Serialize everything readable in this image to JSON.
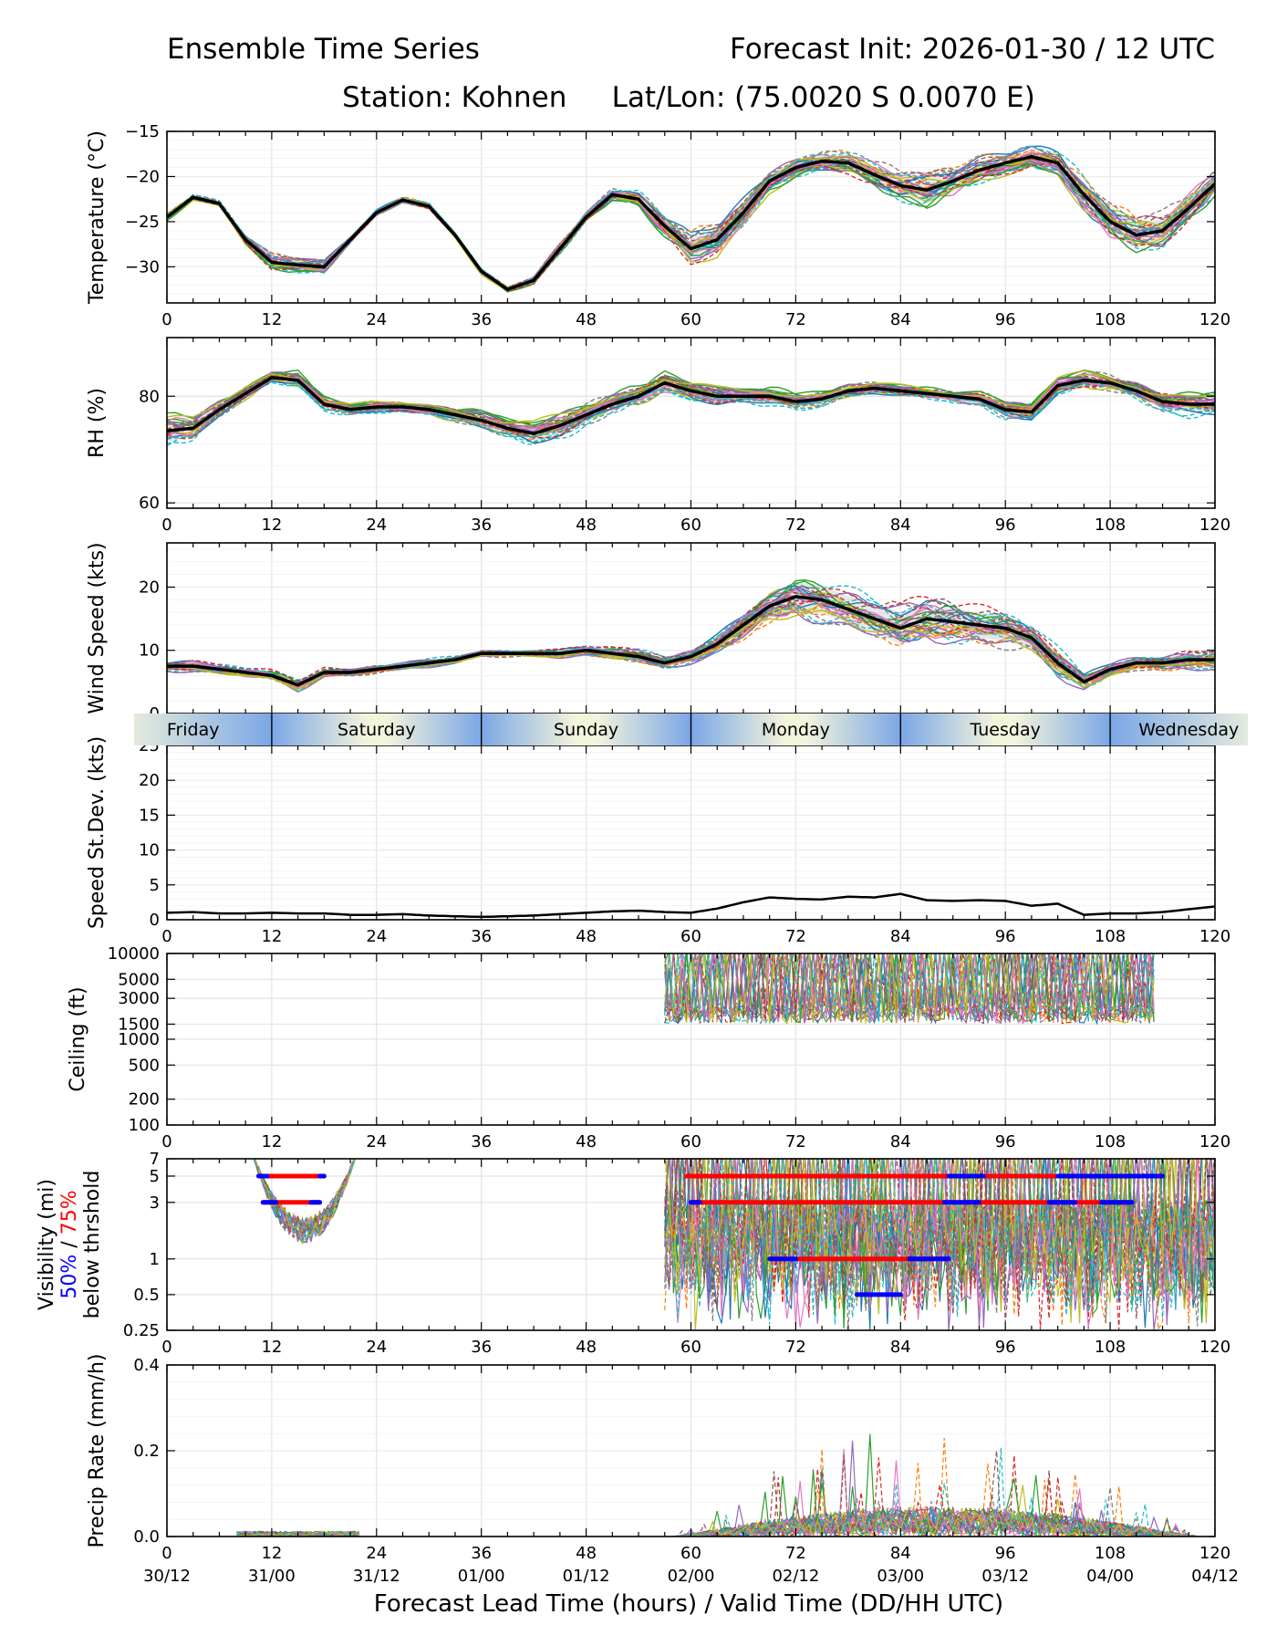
{
  "header": {
    "title_left": "Ensemble Time Series",
    "title_right": "Forecast Init: 2026-01-30 / 12 UTC",
    "station_line": "Station: Kohnen     Lat/Lon: (75.0020 S 0.0070 E)"
  },
  "footer": {
    "xlabel": "Forecast Lead Time (hours) / Valid Time (DD/HH UTC)",
    "valid_time_labels": [
      "30/12",
      "31/00",
      "31/12",
      "01/00",
      "01/12",
      "02/00",
      "02/12",
      "03/00",
      "03/12",
      "04/00",
      "04/12"
    ]
  },
  "day_band": {
    "days": [
      "Friday",
      "Saturday",
      "Sunday",
      "Monday",
      "Tuesday",
      "Wednesday"
    ],
    "boundaries_hours": [
      12,
      36,
      60,
      84,
      108
    ],
    "colors": {
      "night": "#7ba7e6",
      "day": "#f3f4dc"
    }
  },
  "style": {
    "mean_color": "#000000",
    "ensemble_colors": [
      "#1f77b4",
      "#ff7f0e",
      "#2ca02c",
      "#d62728",
      "#9467bd",
      "#8c564b",
      "#e377c2",
      "#7f7f7f",
      "#bcbd22",
      "#17becf"
    ],
    "spread_fill": "#c9c9c9",
    "grid": "#e3e3e3",
    "pct50_color": "#0000ff",
    "pct75_color": "#ff0000"
  },
  "chart_data": [
    {
      "id": "temperature",
      "type": "line",
      "ylabel": "Temperature (°C)",
      "xlim": [
        0,
        120
      ],
      "ylim": [
        -34,
        -15
      ],
      "yticks": [
        -15,
        -20,
        -25,
        -30
      ],
      "xticks": [
        0,
        12,
        24,
        36,
        48,
        60,
        72,
        84,
        96,
        108,
        120
      ],
      "mean": {
        "x": [
          0,
          3,
          6,
          9,
          12,
          15,
          18,
          21,
          24,
          27,
          30,
          33,
          36,
          39,
          42,
          45,
          48,
          51,
          54,
          57,
          60,
          63,
          66,
          69,
          72,
          75,
          78,
          81,
          84,
          87,
          90,
          93,
          96,
          99,
          102,
          105,
          108,
          111,
          114,
          117,
          120
        ],
        "y": [
          -24.5,
          -22.3,
          -23.0,
          -27.0,
          -29.5,
          -29.8,
          -30.0,
          -27.0,
          -24.0,
          -22.6,
          -23.3,
          -26.5,
          -30.5,
          -32.5,
          -31.5,
          -28.0,
          -24.5,
          -22.0,
          -22.5,
          -25.5,
          -28.0,
          -27.0,
          -24.0,
          -20.5,
          -19.0,
          -18.3,
          -18.5,
          -19.8,
          -21.0,
          -21.5,
          -20.5,
          -19.3,
          -18.5,
          -17.8,
          -18.5,
          -22.0,
          -25.0,
          -26.5,
          -26.0,
          -23.5,
          -20.8
        ]
      },
      "members": 30,
      "member_spread": [
        0.4,
        0.3,
        0.3,
        0.5,
        0.8,
        0.8,
        0.7,
        0.4,
        0.3,
        0.3,
        0.3,
        0.3,
        0.3,
        0.3,
        0.4,
        0.5,
        0.5,
        0.6,
        0.8,
        1.2,
        1.6,
        2.0,
        1.6,
        1.2,
        1.0,
        1.0,
        1.1,
        1.3,
        1.6,
        1.9,
        1.8,
        1.4,
        1.2,
        1.2,
        1.4,
        1.8,
        2.0,
        2.0,
        1.8,
        1.6,
        1.3
      ]
    },
    {
      "id": "rh",
      "type": "line",
      "ylabel": "RH (%)",
      "xlim": [
        0,
        120
      ],
      "ylim": [
        59,
        91
      ],
      "yticks": [
        60,
        80
      ],
      "xticks": [
        0,
        12,
        24,
        36,
        48,
        60,
        72,
        84,
        96,
        108,
        120
      ],
      "mean": {
        "x": [
          0,
          3,
          6,
          9,
          12,
          15,
          18,
          21,
          24,
          27,
          30,
          33,
          36,
          39,
          42,
          45,
          48,
          51,
          54,
          57,
          60,
          63,
          66,
          69,
          72,
          75,
          78,
          81,
          84,
          87,
          90,
          93,
          96,
          99,
          102,
          105,
          108,
          111,
          114,
          117,
          120
        ],
        "y": [
          73.5,
          74.0,
          77.5,
          80.5,
          83.5,
          83.0,
          78.5,
          77.5,
          78.0,
          78.0,
          77.5,
          76.5,
          75.5,
          74.0,
          73.0,
          74.5,
          76.5,
          78.5,
          80.0,
          82.5,
          81.0,
          80.0,
          80.0,
          80.0,
          79.0,
          79.5,
          81.0,
          81.5,
          81.0,
          80.5,
          80.0,
          79.5,
          77.5,
          77.0,
          82.0,
          83.0,
          82.5,
          81.0,
          79.0,
          78.5,
          78.5
        ]
      },
      "members": 30,
      "member_spread": [
        3.0,
        2.2,
        1.5,
        1.2,
        1.0,
        1.5,
        1.2,
        1.0,
        1.0,
        1.0,
        1.2,
        1.3,
        1.5,
        1.8,
        2.0,
        2.2,
        2.0,
        1.8,
        1.8,
        2.0,
        1.8,
        1.5,
        1.2,
        1.5,
        1.6,
        1.5,
        1.2,
        1.0,
        1.0,
        1.0,
        1.0,
        1.2,
        1.6,
        1.6,
        1.5,
        1.5,
        1.5,
        1.6,
        2.0,
        2.0,
        2.0
      ]
    },
    {
      "id": "wind_speed",
      "type": "line",
      "ylabel": "Wind Speed (kts)",
      "xlim": [
        0,
        120
      ],
      "ylim": [
        0,
        27
      ],
      "yticks": [
        0,
        10,
        20
      ],
      "xticks": [
        0,
        12,
        24,
        36,
        48,
        60,
        72,
        84,
        96,
        108,
        120
      ],
      "mean": {
        "x": [
          0,
          3,
          6,
          9,
          12,
          15,
          18,
          21,
          24,
          27,
          30,
          33,
          36,
          39,
          42,
          45,
          48,
          51,
          54,
          57,
          60,
          63,
          66,
          69,
          72,
          75,
          78,
          81,
          84,
          87,
          90,
          93,
          96,
          99,
          102,
          105,
          108,
          111,
          114,
          117,
          120
        ],
        "y": [
          7.5,
          7.5,
          7.0,
          6.5,
          6.0,
          4.5,
          6.5,
          6.5,
          7.0,
          7.5,
          8.0,
          8.5,
          9.5,
          9.5,
          9.5,
          9.5,
          10.0,
          9.5,
          9.0,
          8.0,
          9.0,
          11.0,
          14.0,
          17.0,
          18.5,
          18.0,
          16.5,
          15.0,
          13.5,
          15.0,
          14.5,
          14.0,
          13.5,
          12.0,
          8.0,
          5.0,
          7.0,
          8.0,
          8.0,
          8.5,
          8.5
        ]
      },
      "members": 30,
      "member_spread": [
        0.8,
        0.8,
        0.7,
        0.7,
        0.8,
        0.9,
        0.7,
        0.6,
        0.6,
        0.6,
        0.6,
        0.6,
        0.5,
        0.5,
        0.5,
        0.6,
        0.8,
        0.9,
        1.0,
        1.0,
        1.0,
        1.6,
        2.2,
        2.8,
        3.2,
        3.2,
        3.0,
        3.2,
        3.6,
        3.2,
        3.0,
        2.8,
        2.8,
        2.6,
        2.2,
        1.2,
        1.0,
        1.0,
        1.2,
        1.4,
        1.6
      ]
    },
    {
      "id": "speed_stdev",
      "type": "line",
      "ylabel": "Speed St.Dev. (kts)",
      "xlim": [
        0,
        120
      ],
      "ylim": [
        0,
        25
      ],
      "yticks": [
        0,
        5,
        10,
        15,
        20,
        25
      ],
      "xticks": [
        0,
        12,
        24,
        36,
        48,
        60,
        72,
        84,
        96,
        108,
        120
      ],
      "mean": {
        "x": [
          0,
          3,
          6,
          9,
          12,
          15,
          18,
          21,
          24,
          27,
          30,
          33,
          36,
          39,
          42,
          45,
          48,
          51,
          54,
          57,
          60,
          63,
          66,
          69,
          72,
          75,
          78,
          81,
          84,
          87,
          90,
          93,
          96,
          99,
          102,
          105,
          108,
          111,
          114,
          117,
          120
        ],
        "y": [
          1.0,
          1.1,
          0.9,
          0.9,
          1.0,
          0.9,
          0.9,
          0.7,
          0.7,
          0.8,
          0.6,
          0.5,
          0.4,
          0.5,
          0.6,
          0.8,
          1.0,
          1.2,
          1.3,
          1.1,
          1.0,
          1.6,
          2.5,
          3.2,
          3.0,
          2.9,
          3.3,
          3.2,
          3.7,
          2.8,
          2.7,
          2.8,
          2.7,
          2.0,
          2.3,
          0.7,
          0.9,
          0.9,
          1.1,
          1.5,
          1.9
        ]
      },
      "members": 0
    },
    {
      "id": "ceiling",
      "type": "line",
      "ylabel": "Ceiling (ft)",
      "yscale": "log",
      "xlim": [
        0,
        120
      ],
      "ylim": [
        100,
        10000
      ],
      "yticks": [
        100,
        200,
        500,
        1000,
        1500,
        3000,
        5000,
        10000
      ],
      "xticks": [
        0,
        12,
        24,
        36,
        48,
        60,
        72,
        84,
        96,
        108,
        120
      ],
      "active_window_hours": [
        57,
        113
      ],
      "typical_low_ft": 1800,
      "members": 30
    },
    {
      "id": "visibility",
      "type": "line",
      "ylabel_line1": "Visibility (mi)",
      "ylabel_pct50": "50%",
      "ylabel_sep": " / ",
      "ylabel_pct75": "75%",
      "ylabel_line2": "below thrshold",
      "yscale": "log",
      "xlim": [
        0,
        120
      ],
      "ylim": [
        0.25,
        7
      ],
      "yticks": [
        0.25,
        0.5,
        1,
        3,
        5,
        7
      ],
      "xticks": [
        0,
        12,
        24,
        36,
        48,
        60,
        72,
        84,
        96,
        108,
        120
      ],
      "active_windows_hours": [
        [
          9.5,
          22
        ],
        [
          57,
          120
        ]
      ],
      "threshold_bars": [
        {
          "threshold": 5,
          "pct": 75,
          "start": 10.5,
          "end": 18
        },
        {
          "threshold": 5,
          "pct": 50,
          "start": 10.5,
          "end": 11.5
        },
        {
          "threshold": 5,
          "pct": 50,
          "start": 17.5,
          "end": 18
        },
        {
          "threshold": 3,
          "pct": 75,
          "start": 11,
          "end": 17.5
        },
        {
          "threshold": 3,
          "pct": 50,
          "start": 11,
          "end": 12.5
        },
        {
          "threshold": 3,
          "pct": 50,
          "start": 16.5,
          "end": 17.5
        },
        {
          "threshold": 5,
          "pct": 75,
          "start": 59.5,
          "end": 114
        },
        {
          "threshold": 5,
          "pct": 50,
          "start": 89.5,
          "end": 93.5
        },
        {
          "threshold": 5,
          "pct": 50,
          "start": 102,
          "end": 114
        },
        {
          "threshold": 3,
          "pct": 75,
          "start": 60,
          "end": 110.5
        },
        {
          "threshold": 3,
          "pct": 50,
          "start": 60,
          "end": 61
        },
        {
          "threshold": 3,
          "pct": 50,
          "start": 89,
          "end": 93
        },
        {
          "threshold": 3,
          "pct": 50,
          "start": 101,
          "end": 104
        },
        {
          "threshold": 3,
          "pct": 50,
          "start": 107,
          "end": 110.5
        },
        {
          "threshold": 1,
          "pct": 75,
          "start": 72,
          "end": 89.5
        },
        {
          "threshold": 1,
          "pct": 50,
          "start": 69,
          "end": 72
        },
        {
          "threshold": 1,
          "pct": 50,
          "start": 85,
          "end": 89.5
        },
        {
          "threshold": 0.5,
          "pct": 50,
          "start": 79,
          "end": 84
        }
      ],
      "members": 30
    },
    {
      "id": "precip_rate",
      "type": "line",
      "ylabel": "Precip Rate (mm/h)",
      "xlim": [
        0,
        120
      ],
      "ylim": [
        0,
        0.4
      ],
      "yticks": [
        "0.0",
        "0.2",
        "0.4"
      ],
      "xticks": [
        0,
        12,
        24,
        36,
        48,
        60,
        72,
        84,
        96,
        108,
        120
      ],
      "active_windows_hours": [
        [
          8,
          22
        ],
        [
          58,
          118
        ]
      ],
      "typical_peak_mm_h": 0.22,
      "members": 30
    }
  ]
}
